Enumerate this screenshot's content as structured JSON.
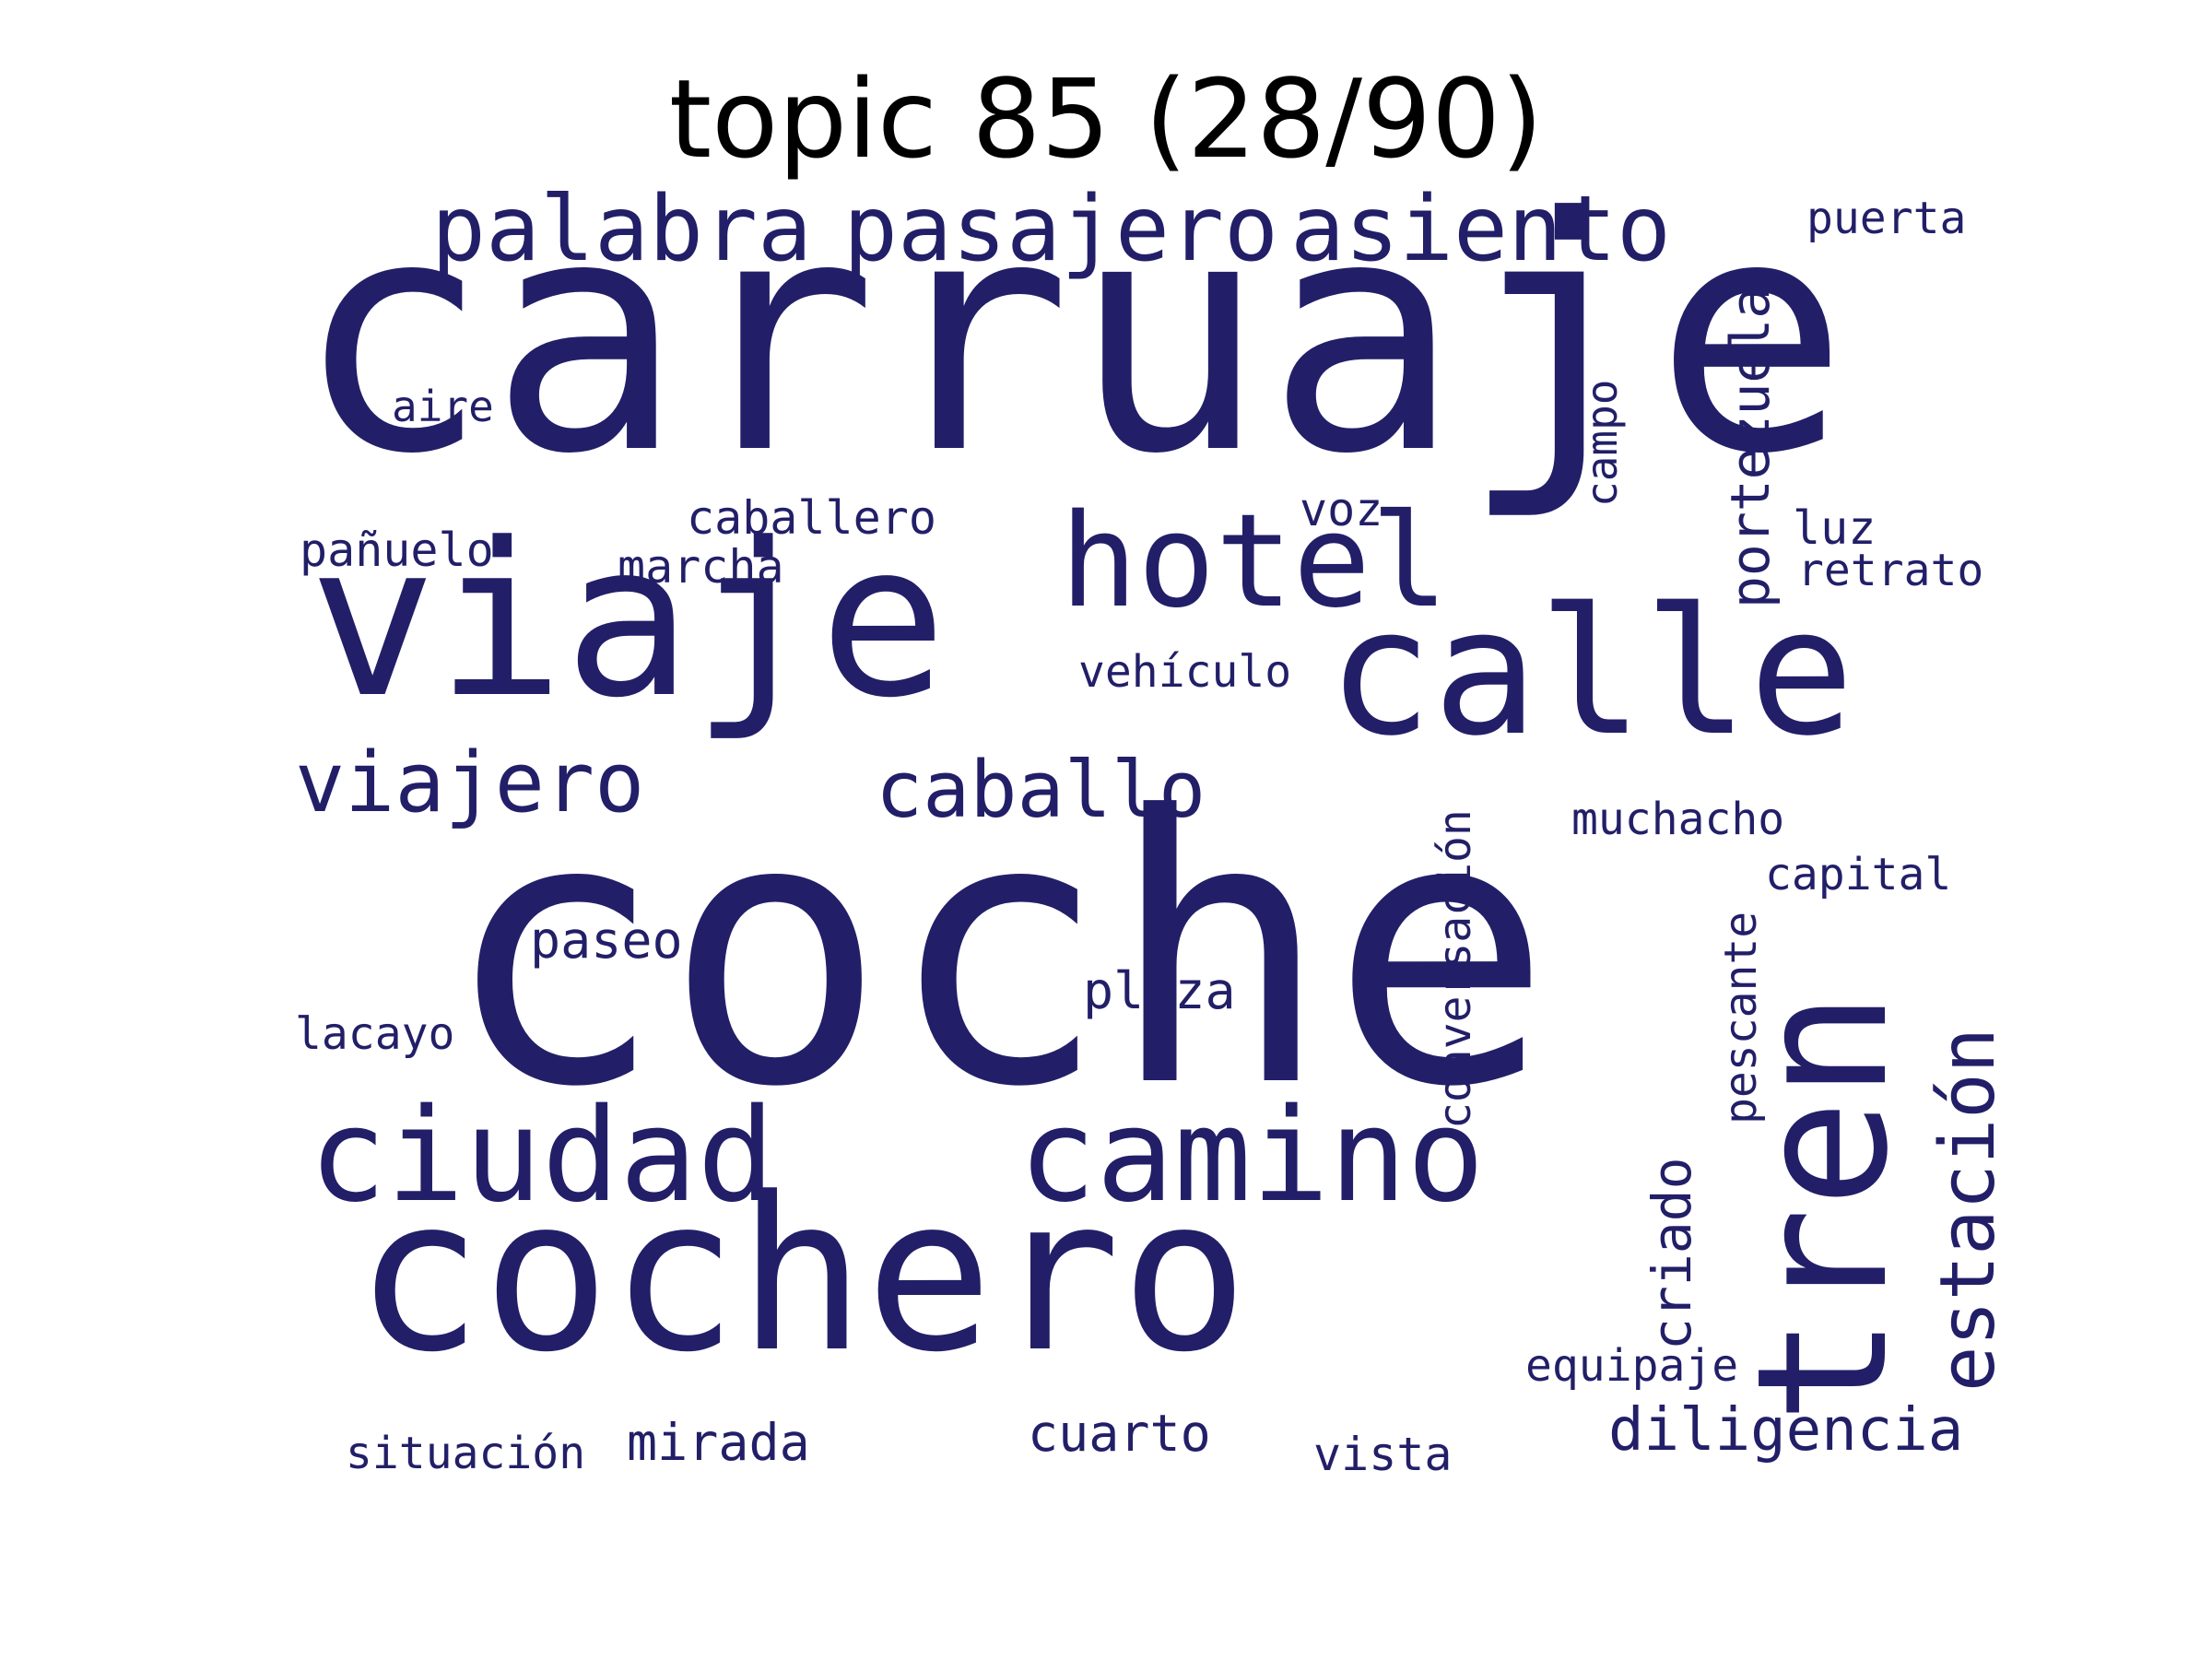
{
  "title": "topic 85 (28/90)",
  "colors": {
    "word": "#221f68",
    "background": "#ffffff",
    "title": "#000000"
  },
  "words": [
    {
      "text": "coche"
    },
    {
      "text": "carruaje"
    },
    {
      "text": "cochero"
    },
    {
      "text": "viaje"
    },
    {
      "text": "calle"
    },
    {
      "text": "tren"
    },
    {
      "text": "ciudad"
    },
    {
      "text": "camino"
    },
    {
      "text": "hotel"
    },
    {
      "text": "pasajero"
    },
    {
      "text": "palabra"
    },
    {
      "text": "asiento"
    },
    {
      "text": "viajero"
    },
    {
      "text": "caballo"
    },
    {
      "text": "estación"
    },
    {
      "text": "diligencia"
    },
    {
      "text": "portezuela"
    },
    {
      "text": "criado"
    },
    {
      "text": "muchacho"
    },
    {
      "text": "paseo"
    },
    {
      "text": "plaza"
    },
    {
      "text": "capital"
    },
    {
      "text": "conversación"
    },
    {
      "text": "pescante"
    },
    {
      "text": "mirada"
    },
    {
      "text": "cuarto"
    },
    {
      "text": "vista"
    },
    {
      "text": "situación"
    },
    {
      "text": "equipaje"
    },
    {
      "text": "caballero"
    },
    {
      "text": "vehículo"
    },
    {
      "text": "marcha"
    },
    {
      "text": "pañuelo"
    },
    {
      "text": "voz"
    },
    {
      "text": "luz"
    },
    {
      "text": "retrato"
    },
    {
      "text": "puerta"
    },
    {
      "text": "aire"
    },
    {
      "text": "campo"
    },
    {
      "text": "lacayo"
    }
  ]
}
